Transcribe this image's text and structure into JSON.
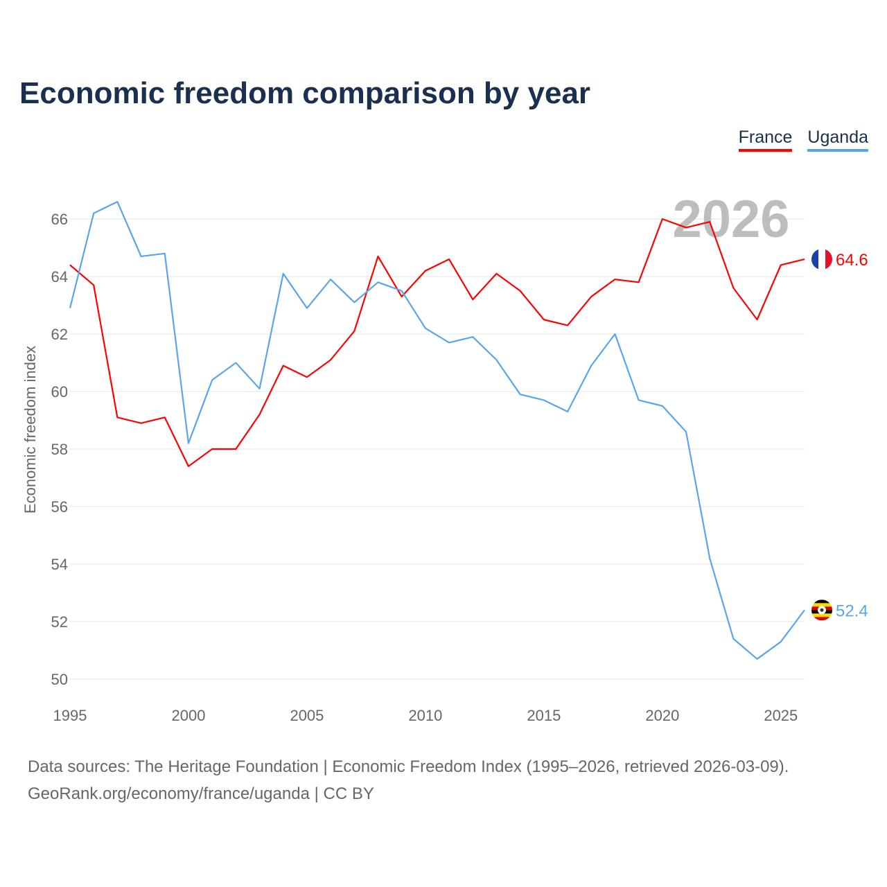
{
  "chart_data": {
    "type": "line",
    "title": "Economic freedom comparison by year",
    "xlabel": "",
    "ylabel": "Economic freedom index",
    "xlim": [
      1995,
      2026
    ],
    "ylim": [
      50,
      67
    ],
    "x_ticks": [
      1995,
      2000,
      2005,
      2010,
      2015,
      2020,
      2025
    ],
    "y_ticks": [
      50,
      52,
      54,
      56,
      58,
      60,
      62,
      64,
      66
    ],
    "grid": true,
    "legend_position": "top-right",
    "highlight_year": "2026",
    "x": [
      1995,
      1996,
      1997,
      1998,
      1999,
      2000,
      2001,
      2002,
      2003,
      2004,
      2005,
      2006,
      2007,
      2008,
      2009,
      2010,
      2011,
      2012,
      2013,
      2014,
      2015,
      2016,
      2017,
      2018,
      2019,
      2020,
      2021,
      2022,
      2023,
      2024,
      2025,
      2026
    ],
    "series": [
      {
        "name": "France",
        "color": "#ff0000",
        "end_label": "64.6",
        "values": [
          64.4,
          63.7,
          59.1,
          58.9,
          59.1,
          57.4,
          58.0,
          58.0,
          59.2,
          60.9,
          60.5,
          61.1,
          62.1,
          64.7,
          63.3,
          64.2,
          64.6,
          63.2,
          64.1,
          63.5,
          62.5,
          62.3,
          63.3,
          63.9,
          63.8,
          66.0,
          65.7,
          65.9,
          63.6,
          62.5,
          64.4,
          64.6
        ]
      },
      {
        "name": "Uganda",
        "color": "#5aa5ea",
        "end_label": "52.4",
        "values": [
          62.9,
          66.2,
          66.6,
          64.7,
          64.8,
          58.2,
          60.4,
          61.0,
          60.1,
          64.1,
          62.9,
          63.9,
          63.1,
          63.8,
          63.5,
          62.2,
          61.7,
          61.9,
          61.1,
          59.9,
          59.7,
          59.3,
          60.9,
          62.0,
          59.7,
          59.5,
          58.6,
          54.2,
          51.4,
          50.7,
          51.3,
          52.4
        ]
      }
    ]
  },
  "footer": {
    "line1": "Data sources: The Heritage Foundation | Economic Freedom Index (1995–2026, retrieved 2026-03-09).",
    "line2": "GeoRank.org/economy/france/uganda | CC BY"
  }
}
